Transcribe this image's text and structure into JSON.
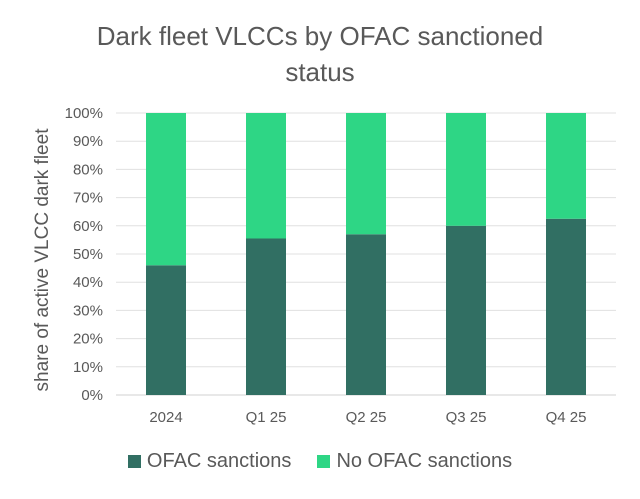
{
  "chart_data": {
    "type": "bar",
    "stacked": true,
    "title_lines": [
      "Dark fleet VLCCs by OFAC sanctioned",
      "status"
    ],
    "title": "Dark fleet VLCCs by OFAC sanctioned status",
    "xlabel": "",
    "ylabel": "share of active VLCC dark fleet",
    "categories": [
      "2024",
      "Q1 25",
      "Q2 25",
      "Q3 25",
      "Q4 25"
    ],
    "ylim": [
      0,
      100
    ],
    "yticks": [
      "0%",
      "10%",
      "20%",
      "30%",
      "40%",
      "50%",
      "60%",
      "70%",
      "80%",
      "90%",
      "100%"
    ],
    "grid": true,
    "legend_position": "bottom",
    "series": [
      {
        "name": "OFAC sanctions",
        "color": "#316F63",
        "values": [
          46,
          55.5,
          57,
          60,
          62.5
        ]
      },
      {
        "name": "No OFAC sanctions",
        "color": "#2ED685",
        "values": [
          54,
          44.5,
          43,
          40,
          37.5
        ]
      }
    ]
  }
}
